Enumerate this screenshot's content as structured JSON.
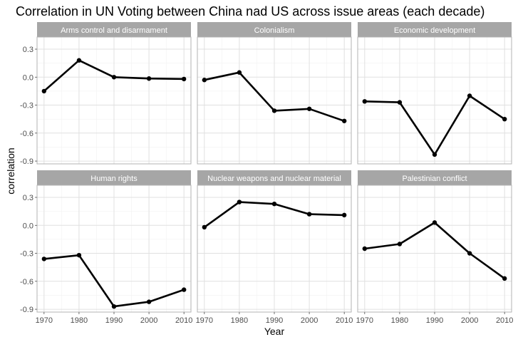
{
  "chart_data": {
    "type": "line",
    "title": "Correlation in UN Voting between China nad US across issue areas (each decade)",
    "xlabel": "Year",
    "ylabel": "correlation",
    "x": [
      1970,
      1980,
      1990,
      2000,
      2010
    ],
    "x_ticks": [
      1970,
      1980,
      1990,
      2000,
      2010
    ],
    "y_ticks": [
      0.3,
      0.0,
      -0.3,
      -0.6,
      -0.9
    ],
    "y_tick_labels": [
      "0.3",
      "0.0",
      "-0.3",
      "-0.6",
      "-0.9"
    ],
    "ylim": [
      -0.93,
      0.43
    ],
    "xlim": [
      1968,
      2012
    ],
    "grid": true,
    "legend": "none",
    "facet_layout": {
      "rows": 2,
      "cols": 3
    },
    "series": [
      {
        "name": "Arms control and disarmament",
        "values": [
          -0.15,
          0.18,
          0.0,
          -0.015,
          -0.02
        ]
      },
      {
        "name": "Colonialism",
        "values": [
          -0.03,
          0.05,
          -0.36,
          -0.34,
          -0.47
        ]
      },
      {
        "name": "Economic development",
        "values": [
          -0.26,
          -0.27,
          -0.83,
          -0.2,
          -0.45
        ]
      },
      {
        "name": "Human rights",
        "values": [
          -0.36,
          -0.32,
          -0.87,
          -0.82,
          -0.69
        ]
      },
      {
        "name": "Nuclear weapons and nuclear material",
        "values": [
          -0.02,
          0.25,
          0.23,
          0.12,
          0.11
        ]
      },
      {
        "name": "Palestinian conflict",
        "values": [
          -0.25,
          -0.2,
          0.03,
          -0.3,
          -0.57
        ]
      }
    ]
  },
  "colors": {
    "line": "#000000",
    "strip_fill": "#a6a6a6",
    "strip_text": "#ffffff",
    "panel_border": "#b3b3b3",
    "grid_major": "#e0e0e0",
    "grid_minor": "#f2f2f2",
    "tick_text": "#4d4d4d"
  }
}
